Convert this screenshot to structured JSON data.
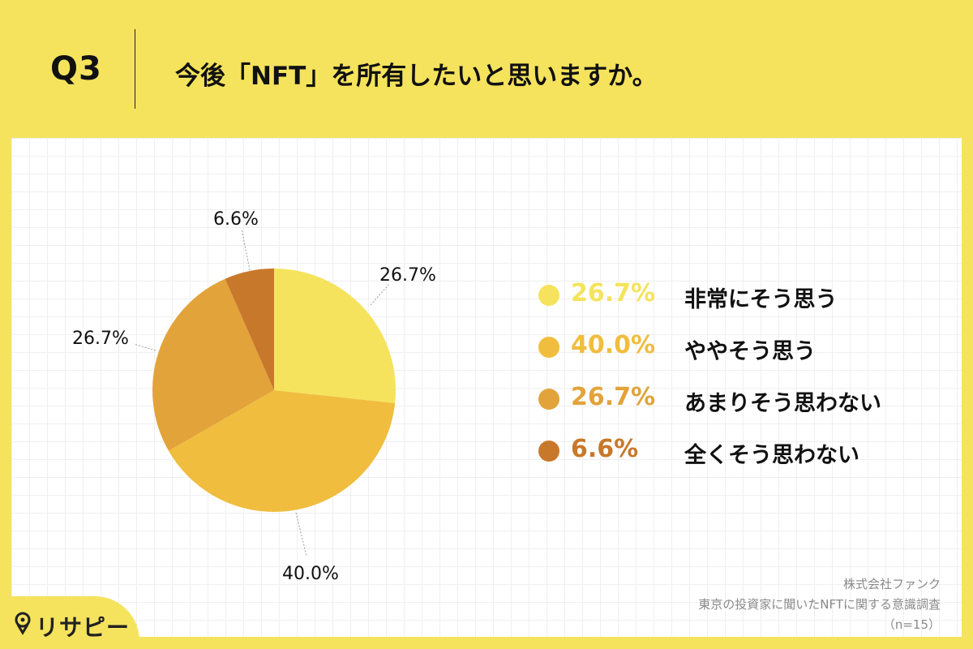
{
  "header": {
    "qnum": "Q3",
    "question": "今後「NFT」を所有したいと思いますか。"
  },
  "chart_data": {
    "type": "pie",
    "categories": [
      "非常にそう思う",
      "ややそう思う",
      "あまりそう思わない",
      "全くそう思わない"
    ],
    "values": [
      26.7,
      40.0,
      26.7,
      6.6
    ],
    "labels": [
      "26.7%",
      "40.0%",
      "26.7%",
      "6.6%"
    ],
    "colors": [
      "#f5e35d",
      "#f0bd3e",
      "#e2a33a",
      "#c8782a"
    ],
    "start_angle_deg": 0,
    "direction": "clockwise",
    "legend_position": "right"
  },
  "legend": [
    {
      "pct": "26.7%",
      "label": "非常にそう思う",
      "color": "#f5e35d"
    },
    {
      "pct": "40.0%",
      "label": "ややそう思う",
      "color": "#f0bd3e"
    },
    {
      "pct": "26.7%",
      "label": "あまりそう思わない",
      "color": "#e2a33a"
    },
    {
      "pct": "6.6%",
      "label": "全くそう思わない",
      "color": "#c8782a"
    }
  ],
  "footer": {
    "company": "株式会社ファンク",
    "survey": "東京の投資家に聞いたNFTに関する意識調査",
    "n": "（n=15）"
  },
  "brand": {
    "logo_text": "リサピー",
    "logo_icon": "pin-icon"
  }
}
